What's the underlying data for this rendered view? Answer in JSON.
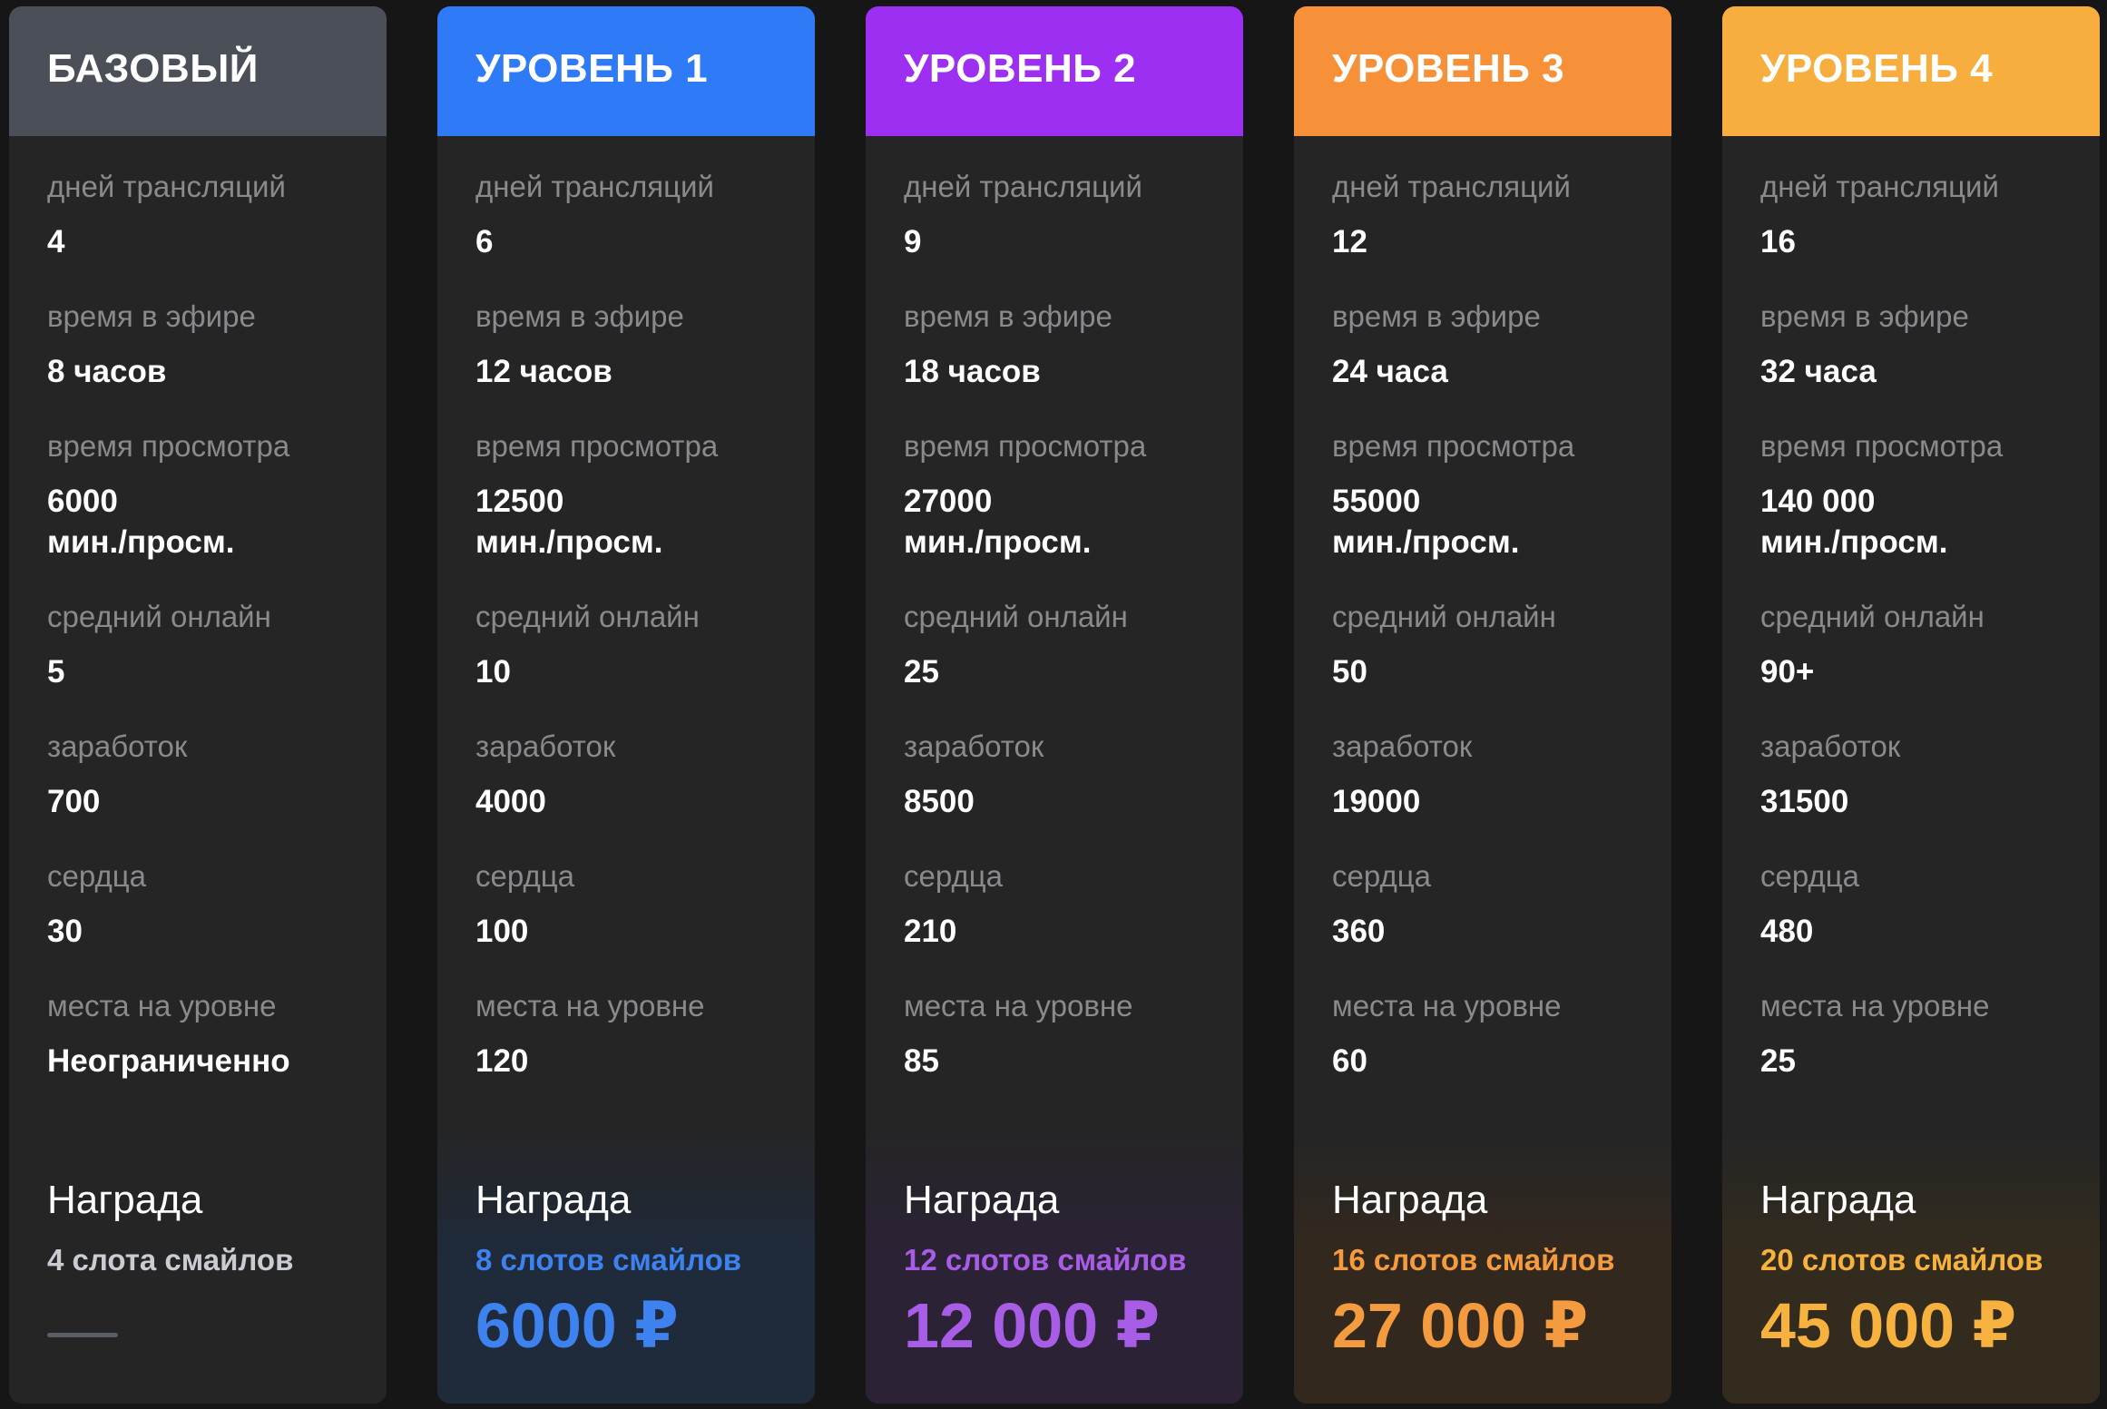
{
  "reward_title": "Награда",
  "stat_labels": {
    "days": "дней трансляций",
    "airtime": "время в эфире",
    "watchtime": "время просмотра",
    "online": "средний онлайн",
    "earnings": "заработок",
    "hearts": "сердца",
    "spots": "места на уровне"
  },
  "tiers": [
    {
      "name": "БАЗОВЫЙ",
      "header_color": "#4b5058",
      "accent": "#c9ccd1",
      "reward_bg": "#252526",
      "days": "4",
      "airtime": "8 часов",
      "watchtime_value": "6000",
      "watchtime_unit": "мин./просм.",
      "online": "5",
      "earnings": "700",
      "hearts": "30",
      "spots": "Неограниченно",
      "reward_slots": "4 слота смайлов",
      "reward_price": ""
    },
    {
      "name": "УРОВЕНЬ 1",
      "header_color": "#2f7af7",
      "accent": "#3d82ee",
      "reward_bg": "#1f2a3a",
      "days": "6",
      "airtime": "12 часов",
      "watchtime_value": "12500",
      "watchtime_unit": "мин./просм.",
      "online": "10",
      "earnings": "4000",
      "hearts": "100",
      "spots": "120",
      "reward_slots": "8 слотов смайлов",
      "reward_price": "6000 ₽"
    },
    {
      "name": "УРОВЕНЬ 2",
      "header_color": "#9d2ff2",
      "accent": "#a85de6",
      "reward_bg": "#2c2236",
      "days": "9",
      "airtime": "18 часов",
      "watchtime_value": "27000",
      "watchtime_unit": "мин./просм.",
      "online": "25",
      "earnings": "8500",
      "hearts": "210",
      "spots": "85",
      "reward_slots": "12 слотов смайлов",
      "reward_price": "12 000 ₽"
    },
    {
      "name": "УРОВЕНЬ 3",
      "header_color": "#f6913a",
      "accent": "#f49a3f",
      "reward_bg": "#33281e",
      "days": "12",
      "airtime": "24 часа",
      "watchtime_value": "55000",
      "watchtime_unit": "мин./просм.",
      "online": "50",
      "earnings": "19000",
      "hearts": "360",
      "spots": "60",
      "reward_slots": "16 слотов смайлов",
      "reward_price": "27 000 ₽"
    },
    {
      "name": "УРОВЕНЬ 4",
      "header_color": "#f8ae3e",
      "accent": "#f6b13e",
      "reward_bg": "#332b1e",
      "days": "16",
      "airtime": "32 часа",
      "watchtime_value": "140 000",
      "watchtime_unit": "мин./просм.",
      "online": "90+",
      "earnings": "31500",
      "hearts": "480",
      "spots": "25",
      "reward_slots": "20 слотов смайлов",
      "reward_price": "45 000 ₽"
    }
  ]
}
